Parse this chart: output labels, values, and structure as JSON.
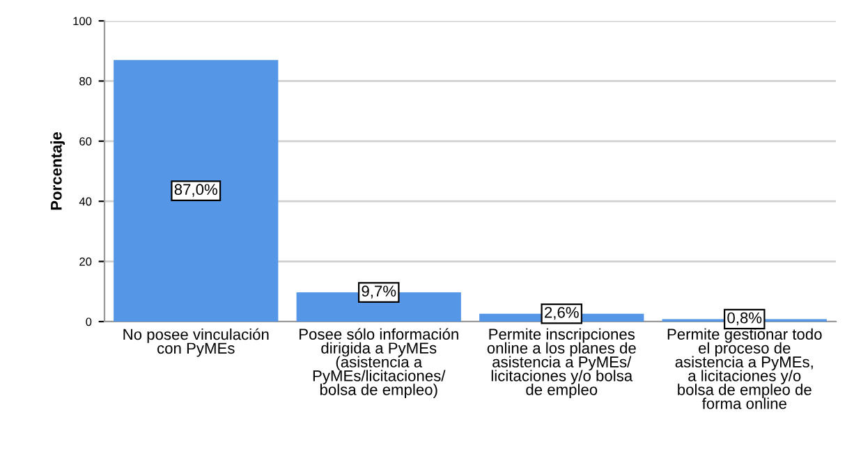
{
  "chart_data": {
    "type": "bar",
    "ylabel": "Porcentaje",
    "categories": [
      "No posee vinculación\ncon PyMEs",
      "Posee sólo información\ndirigida a PyMEs\n(asistencia a\nPyMEs/licitaciones/\nbolsa de empleo)",
      "Permite inscripciones\nonline a los planes de\nasistencia a PyMEs/\nlicitaciones y/o bolsa\nde empleo",
      "Permite gestionar todo\nel proceso de\nasistencia a PyMEs,\na licitaciones y/o\nbolsa de empleo de\nforma online"
    ],
    "values": [
      87.0,
      9.7,
      2.6,
      0.8
    ],
    "value_labels": [
      "87,0%",
      "9,7%",
      "2,6%",
      "0,8%"
    ],
    "color": "#5596e6",
    "ylim": [
      0,
      100
    ],
    "yticks": [
      0,
      20,
      40,
      60,
      80,
      100
    ],
    "grid": "y"
  }
}
